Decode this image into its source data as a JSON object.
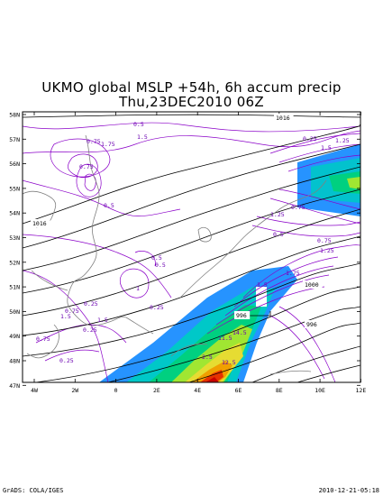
{
  "title_line1": "UKMO global MSLP +54h, 6h accum precip",
  "title_line2": "Thu,23DEC2010 06Z",
  "lat_labels": [
    "58N",
    "57N",
    "56N",
    "55N",
    "54N",
    "53N",
    "52N",
    "51N",
    "50N",
    "49N",
    "48N",
    "47N"
  ],
  "lon_labels": [
    "4W",
    "2W",
    "0",
    "2E",
    "4E",
    "6E",
    "8E",
    "10E",
    "12E"
  ],
  "isobar_labels": [
    "1016",
    "1016",
    "1000",
    "996",
    "996"
  ],
  "precip_labels": [
    "0.5",
    "0.5",
    "0.5",
    "0.5",
    "0.5",
    "0.75",
    "0.75",
    "0.75",
    "0.75",
    "0.75",
    "0.75",
    "0.25",
    "0.25",
    "0.25",
    "0.25",
    "0.25",
    "1.25",
    "1.25",
    "1.25",
    "1.75",
    "1.75",
    "1.5",
    "1.5",
    "1.5",
    "1.5",
    "1",
    "1.5",
    "14.5",
    "11.5",
    "12.5",
    "2.5"
  ],
  "footer_left": "GrADS: COLA/IGES",
  "footer_right": "2010-12-21-05:18",
  "colors": {
    "isobar": "#000000",
    "precip_contour": "#8a00c8",
    "coast": "#808080",
    "shading": [
      "#8000d0",
      "#0080ff",
      "#00c8c8",
      "#00d080",
      "#a0e632",
      "#e6dc32",
      "#f0a000",
      "#e63200",
      "#c80000"
    ]
  }
}
